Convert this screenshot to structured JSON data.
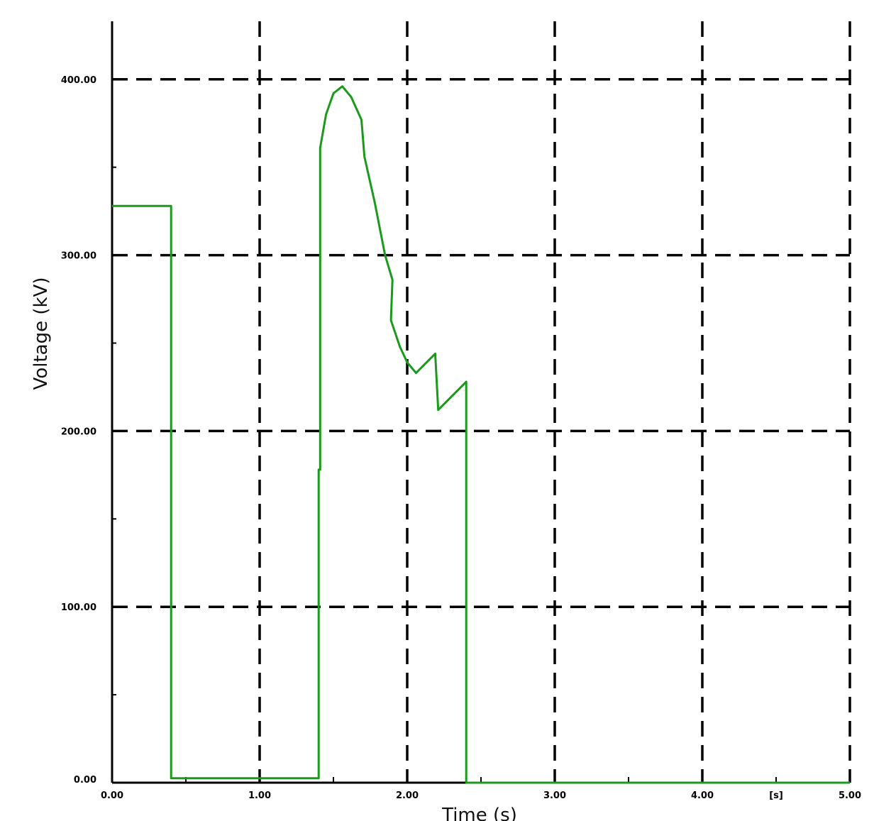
{
  "chart_data": {
    "type": "line",
    "title": "",
    "xlabel": "Time (s)",
    "ylabel": "Voltage (kV)",
    "x_unit_label": "[s]",
    "xlim": [
      0,
      5
    ],
    "ylim": [
      0,
      433
    ],
    "grid": true,
    "grid_style": "dashed",
    "x_ticks": [
      0,
      1,
      2,
      3,
      4,
      5
    ],
    "x_tick_labels": [
      "0.00",
      "1.00",
      "2.00",
      "3.00",
      "4.00",
      "5.00"
    ],
    "y_ticks": [
      0,
      100,
      200,
      300,
      400
    ],
    "y_tick_labels": [
      "0.00",
      "100.00",
      "200.00",
      "300.00",
      "400.00"
    ],
    "line_color": "#1a9a1a",
    "series": [
      {
        "x": [
          0,
          0.4,
          0.4,
          1.4,
          1.4,
          1.41,
          1.41,
          1.45,
          1.5,
          1.56,
          1.62,
          1.69,
          1.71,
          1.78,
          1.85,
          1.9,
          1.89,
          1.95,
          2.0,
          2.06,
          2.19,
          2.21,
          2.4,
          2.4,
          5.0
        ],
        "y": [
          328,
          328,
          2.5,
          2.5,
          178,
          178,
          361,
          380,
          392,
          396,
          390,
          377,
          356,
          330,
          300,
          286,
          263,
          248,
          239,
          233,
          244,
          212,
          228,
          0,
          0
        ]
      }
    ]
  }
}
